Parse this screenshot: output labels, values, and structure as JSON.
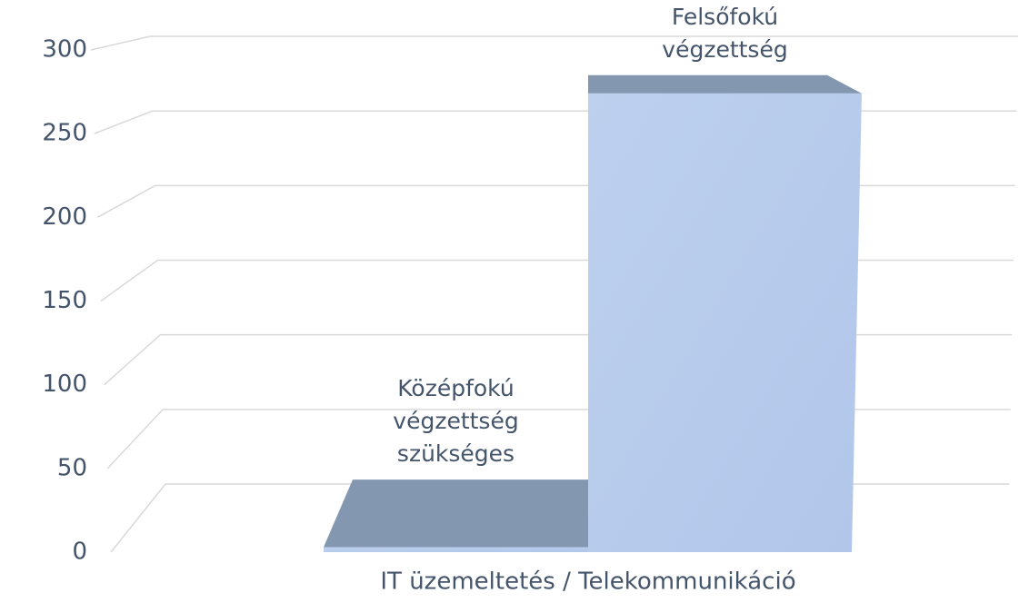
{
  "chart_data": {
    "type": "bar3d",
    "categories": [
      "IT üzemeltetés / Telekommunikáció"
    ],
    "series": [
      {
        "name": "Középfokú végzettség szükséges",
        "values": [
          3
        ],
        "color": "#b4c7e7",
        "top_color": "#8497b0"
      },
      {
        "name": "Felsőfokú végzettség",
        "values": [
          274
        ],
        "color": "#b4c7e7",
        "top_color": "#8497b0"
      }
    ],
    "ylim": [
      0,
      300
    ],
    "yticks": [
      0,
      50,
      100,
      150,
      200,
      250,
      300
    ],
    "grid": true
  }
}
